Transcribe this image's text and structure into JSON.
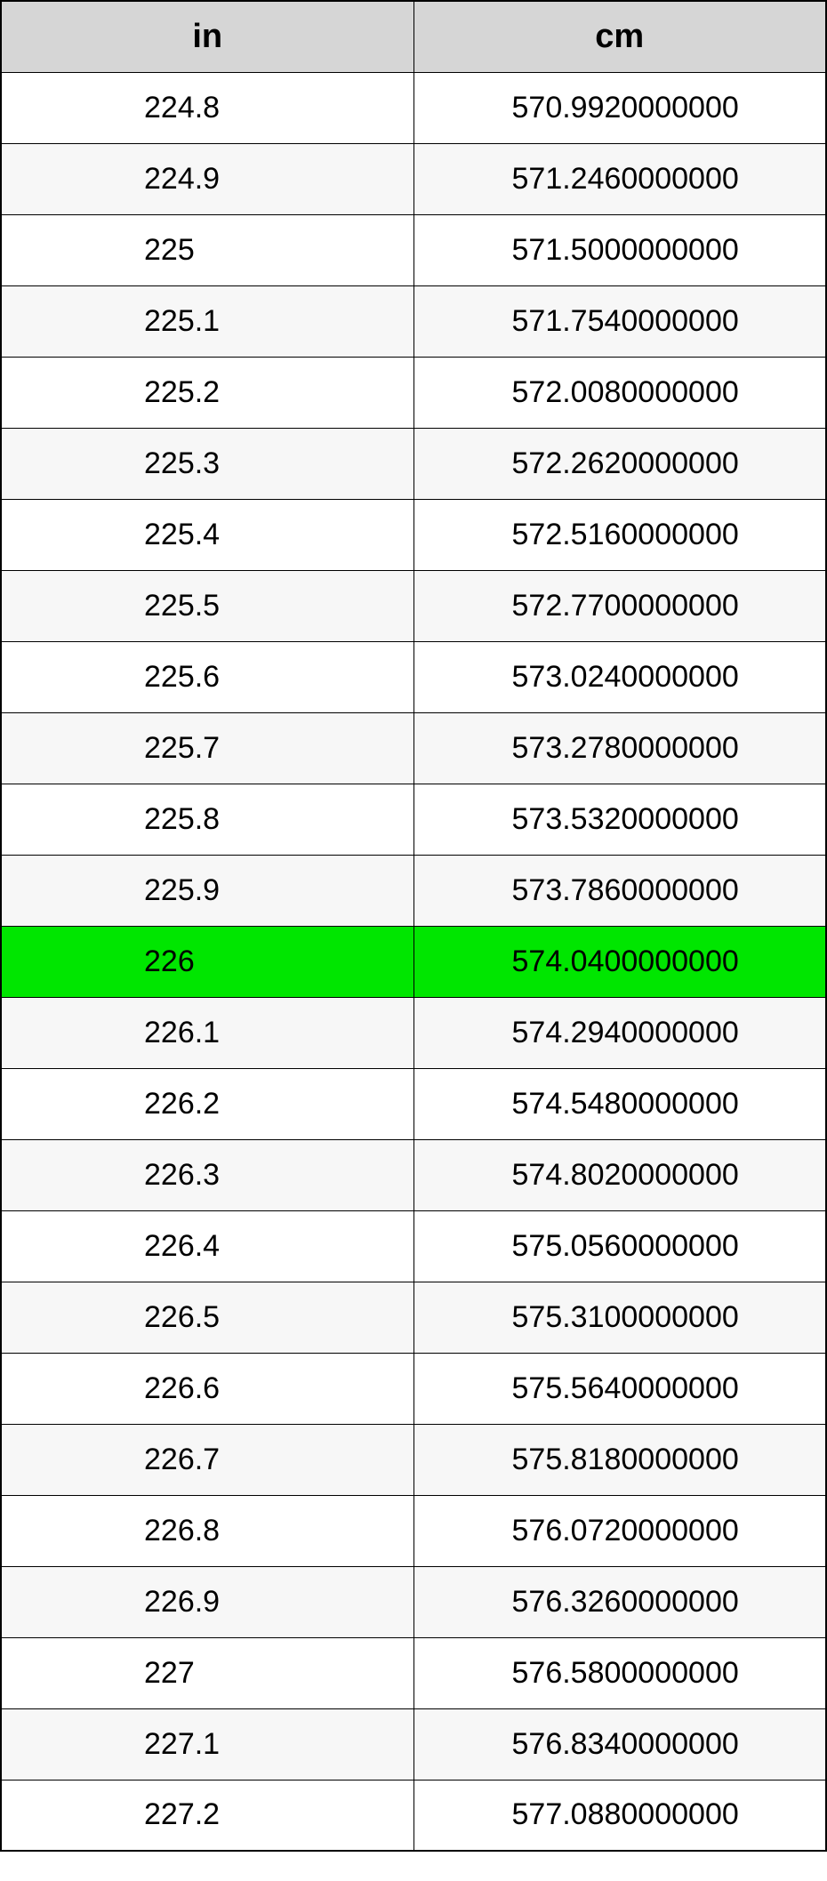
{
  "table": {
    "columns": [
      "in",
      "cm"
    ],
    "header_bg": "#d6d6d6",
    "row_bg_even": "#ffffff",
    "row_bg_odd": "#f7f7f7",
    "highlight_bg": "#00e600",
    "border_color": "#000000",
    "font_family": "Arial",
    "header_fontsize": 38,
    "cell_fontsize": 34,
    "highlight_index": 12,
    "rows": [
      {
        "in": "224.8",
        "cm": "570.9920000000"
      },
      {
        "in": "224.9",
        "cm": "571.2460000000"
      },
      {
        "in": "225",
        "cm": "571.5000000000"
      },
      {
        "in": "225.1",
        "cm": "571.7540000000"
      },
      {
        "in": "225.2",
        "cm": "572.0080000000"
      },
      {
        "in": "225.3",
        "cm": "572.2620000000"
      },
      {
        "in": "225.4",
        "cm": "572.5160000000"
      },
      {
        "in": "225.5",
        "cm": "572.7700000000"
      },
      {
        "in": "225.6",
        "cm": "573.0240000000"
      },
      {
        "in": "225.7",
        "cm": "573.2780000000"
      },
      {
        "in": "225.8",
        "cm": "573.5320000000"
      },
      {
        "in": "225.9",
        "cm": "573.7860000000"
      },
      {
        "in": "226",
        "cm": "574.0400000000"
      },
      {
        "in": "226.1",
        "cm": "574.2940000000"
      },
      {
        "in": "226.2",
        "cm": "574.5480000000"
      },
      {
        "in": "226.3",
        "cm": "574.8020000000"
      },
      {
        "in": "226.4",
        "cm": "575.0560000000"
      },
      {
        "in": "226.5",
        "cm": "575.3100000000"
      },
      {
        "in": "226.6",
        "cm": "575.5640000000"
      },
      {
        "in": "226.7",
        "cm": "575.8180000000"
      },
      {
        "in": "226.8",
        "cm": "576.0720000000"
      },
      {
        "in": "226.9",
        "cm": "576.3260000000"
      },
      {
        "in": "227",
        "cm": "576.5800000000"
      },
      {
        "in": "227.1",
        "cm": "576.8340000000"
      },
      {
        "in": "227.2",
        "cm": "577.0880000000"
      }
    ]
  }
}
